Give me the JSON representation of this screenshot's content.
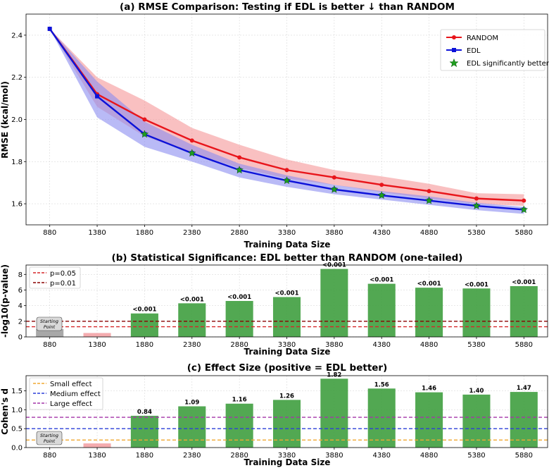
{
  "chart_data": [
    {
      "type": "line",
      "title": "(a) RMSE Comparison: Testing if EDL is better ↓ than RANDOM",
      "xlabel": "Training Data Size",
      "ylabel": "RMSE (kcal/mol)",
      "x": [
        880,
        1380,
        1880,
        2380,
        2880,
        3380,
        3880,
        4380,
        4880,
        5380,
        5880
      ],
      "xticks": [
        "880",
        "1380",
        "1880",
        "2380",
        "2880",
        "3380",
        "3880",
        "4380",
        "4880",
        "5380",
        "5880"
      ],
      "ylim": [
        1.5,
        2.5
      ],
      "yticks": [
        1.6,
        1.8,
        2.0,
        2.2,
        2.4
      ],
      "ytick_labels": [
        "1.6",
        "1.8",
        "2.0",
        "2.2",
        "2.4"
      ],
      "grid": true,
      "legend_position": "top-right",
      "series": [
        {
          "name": "RANDOM",
          "color": "#e8151b",
          "band_color": "#f48c8e",
          "values": [
            2.43,
            2.12,
            2.0,
            1.9,
            1.82,
            1.76,
            1.725,
            1.69,
            1.66,
            1.625,
            1.615
          ],
          "upper": [
            2.43,
            2.2,
            2.09,
            1.96,
            1.88,
            1.81,
            1.76,
            1.73,
            1.695,
            1.65,
            1.645
          ],
          "lower": [
            2.43,
            2.06,
            1.92,
            1.84,
            1.77,
            1.72,
            1.69,
            1.655,
            1.625,
            1.6,
            1.59
          ]
        },
        {
          "name": "EDL",
          "color": "#0c12d9",
          "band_color": "#8a8cf0",
          "values": [
            2.43,
            2.11,
            1.93,
            1.84,
            1.76,
            1.71,
            1.668,
            1.64,
            1.615,
            1.59,
            1.572
          ],
          "upper": [
            2.43,
            2.18,
            1.99,
            1.88,
            1.79,
            1.735,
            1.69,
            1.66,
            1.635,
            1.605,
            1.585
          ],
          "lower": [
            2.43,
            2.01,
            1.87,
            1.8,
            1.725,
            1.68,
            1.645,
            1.62,
            1.595,
            1.57,
            1.552
          ]
        }
      ],
      "significant_marker": {
        "name": "EDL significantly better",
        "color": "#1f9e1f",
        "x": [
          1880,
          2380,
          2880,
          3380,
          3880,
          4380,
          4880,
          5380,
          5880
        ],
        "y": [
          1.93,
          1.84,
          1.76,
          1.71,
          1.668,
          1.64,
          1.615,
          1.59,
          1.572
        ]
      }
    },
    {
      "type": "bar",
      "title": "(b) Statistical Significance: EDL better than RANDOM (one-tailed)",
      "xlabel": "Training Data Size",
      "ylabel": "-log10(p-value)",
      "categories": [
        "880",
        "1380",
        "1880",
        "2380",
        "2880",
        "3380",
        "3880",
        "4380",
        "4880",
        "5380",
        "5880"
      ],
      "values": [
        1.0,
        0.5,
        3.0,
        4.3,
        4.6,
        5.1,
        8.7,
        6.8,
        6.3,
        6.2,
        6.5
      ],
      "bar_colors": [
        "#9e9e9e",
        "#f3a3a6",
        "#3f9e3f",
        "#3f9e3f",
        "#3f9e3f",
        "#3f9e3f",
        "#3f9e3f",
        "#3f9e3f",
        "#3f9e3f",
        "#3f9e3f",
        "#3f9e3f"
      ],
      "labels": [
        "",
        "",
        "<0.001",
        "<0.001",
        "<0.001",
        "<0.001",
        "<0.001",
        "<0.001",
        "<0.001",
        "<0.001",
        "<0.001"
      ],
      "ylim": [
        0,
        9.2
      ],
      "yticks": [
        0,
        2,
        4,
        6,
        8
      ],
      "ytick_labels": [
        "0",
        "2",
        "4",
        "6",
        "8"
      ],
      "start_annotation": [
        "Starting",
        "Point"
      ],
      "hlines": [
        {
          "name": "p=0.05",
          "value": 1.301,
          "color": "#d62728"
        },
        {
          "name": "p=0.01",
          "value": 2.0,
          "color": "#8b0000"
        }
      ],
      "legend_position": "top-left"
    },
    {
      "type": "bar",
      "title": "(c) Effect Size (positive = EDL better)",
      "xlabel": "Training Data Size",
      "ylabel": "Cohen's d",
      "categories": [
        "880",
        "1380",
        "1880",
        "2380",
        "2880",
        "3380",
        "3880",
        "4380",
        "4880",
        "5380",
        "5880"
      ],
      "values": [
        0.0,
        0.11,
        0.84,
        1.09,
        1.16,
        1.26,
        1.82,
        1.56,
        1.46,
        1.4,
        1.47
      ],
      "bar_colors": [
        "#9e9e9e",
        "#f3a3a6",
        "#3f9e3f",
        "#3f9e3f",
        "#3f9e3f",
        "#3f9e3f",
        "#3f9e3f",
        "#3f9e3f",
        "#3f9e3f",
        "#3f9e3f",
        "#3f9e3f"
      ],
      "labels": [
        "",
        "",
        "0.84",
        "1.09",
        "1.16",
        "1.26",
        "1.82",
        "1.56",
        "1.46",
        "1.40",
        "1.47"
      ],
      "ylim": [
        0,
        1.9
      ],
      "yticks": [
        0.0,
        0.5,
        1.0,
        1.5
      ],
      "ytick_labels": [
        "0.0",
        "0.5",
        "1.0",
        "1.5"
      ],
      "start_annotation": [
        "Starting",
        "Point"
      ],
      "hlines": [
        {
          "name": "Small effect",
          "value": 0.2,
          "color": "#f0a830"
        },
        {
          "name": "Medium effect",
          "value": 0.5,
          "color": "#2b3fd8"
        },
        {
          "name": "Large effect",
          "value": 0.8,
          "color": "#a335a8"
        }
      ],
      "legend_position": "top-left"
    }
  ]
}
